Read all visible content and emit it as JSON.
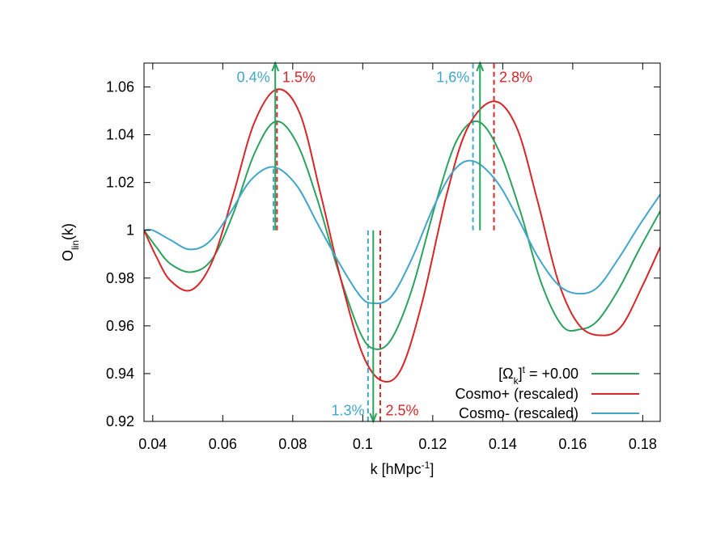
{
  "chart_data": {
    "type": "line",
    "title": "",
    "xlabel": {
      "main": "k [hMpc",
      "sup": "-1",
      "end": "]"
    },
    "ylabel": {
      "main": "O",
      "sub": "lin",
      "end": "(k)"
    },
    "xlim": [
      0.0375,
      0.185
    ],
    "ylim": [
      0.92,
      1.07
    ],
    "xticks": [
      0.04,
      0.06,
      0.08,
      0.1,
      0.12,
      0.14,
      0.16,
      0.18
    ],
    "xtick_labels": [
      "0.04",
      "0.06",
      "0.08",
      "0.1",
      "0.12",
      "0.14",
      "0.16",
      "0.18"
    ],
    "yticks": [
      0.92,
      0.94,
      0.96,
      0.98,
      1.0,
      1.02,
      1.04,
      1.06
    ],
    "ytick_labels": [
      "0.92",
      "0.94",
      "0.96",
      "0.98",
      "1",
      "1.02",
      "1.04",
      "1.06"
    ],
    "grid": false,
    "legend_position": "bottom-right",
    "series": [
      {
        "name": "[Ω_k]^t = +0.00",
        "legend": {
          "pre": "[Ω",
          "sub": "k",
          "mid": "]",
          "sup": "t",
          "post": " = +0.00"
        },
        "color": "#2ca25f",
        "x": [
          0.0375,
          0.041,
          0.045,
          0.051,
          0.057,
          0.063,
          0.069,
          0.075,
          0.081,
          0.087,
          0.093,
          0.099,
          0.103,
          0.108,
          0.114,
          0.121,
          0.127,
          0.133,
          0.139,
          0.145,
          0.151,
          0.157,
          0.162,
          0.167,
          0.173,
          0.179,
          0.185
        ],
        "y": [
          1.0,
          0.993,
          0.986,
          0.9825,
          0.988,
          1.007,
          1.032,
          1.0455,
          1.037,
          1.013,
          0.983,
          0.958,
          0.9505,
          0.954,
          0.975,
          1.012,
          1.038,
          1.0455,
          1.033,
          1.008,
          0.978,
          0.96,
          0.9585,
          0.962,
          0.975,
          0.992,
          1.008
        ]
      },
      {
        "name": "Cosmo+ (rescaled)",
        "legend": {
          "pre": "Cosmo+ (rescaled)"
        },
        "color": "#d62728",
        "x": [
          0.0375,
          0.041,
          0.045,
          0.051,
          0.057,
          0.063,
          0.069,
          0.0755,
          0.082,
          0.088,
          0.094,
          0.1,
          0.1055,
          0.111,
          0.117,
          0.124,
          0.13,
          0.1375,
          0.144,
          0.15,
          0.156,
          0.162,
          0.1685,
          0.174,
          0.18,
          0.185
        ],
        "y": [
          1.0,
          0.989,
          0.979,
          0.975,
          0.987,
          1.015,
          1.045,
          1.059,
          1.049,
          1.015,
          0.978,
          0.948,
          0.937,
          0.942,
          0.97,
          1.015,
          1.043,
          1.054,
          1.043,
          1.012,
          0.978,
          0.96,
          0.956,
          0.96,
          0.977,
          0.993
        ]
      },
      {
        "name": "Cosmo- (rescaled)",
        "legend": {
          "pre": "Cosmo- (rescaled)"
        },
        "color": "#41a6c9",
        "x": [
          0.0375,
          0.04,
          0.045,
          0.0505,
          0.056,
          0.062,
          0.068,
          0.0745,
          0.081,
          0.087,
          0.093,
          0.099,
          0.1025,
          0.108,
          0.114,
          0.12,
          0.126,
          0.1315,
          0.138,
          0.144,
          0.15,
          0.156,
          0.1615,
          0.167,
          0.173,
          0.179,
          0.185
        ],
        "y": [
          1.0,
          1.0,
          0.996,
          0.992,
          0.995,
          1.007,
          1.021,
          1.0265,
          1.019,
          1.003,
          0.987,
          0.973,
          0.9695,
          0.972,
          0.988,
          1.009,
          1.025,
          1.029,
          1.021,
          1.006,
          0.989,
          0.977,
          0.9735,
          0.976,
          0.988,
          1.002,
          1.015
        ]
      }
    ],
    "markers": [
      {
        "x": 0.0745,
        "y1": 1.0,
        "y2": 1.0265,
        "color": "#41a6c9",
        "style": "dashed"
      },
      {
        "x": 0.0755,
        "y1": 1.0,
        "y2": 1.059,
        "color": "#d62728",
        "style": "dashed"
      },
      {
        "x": 0.1015,
        "y1": 0.92,
        "y2": 1.0,
        "color": "#41a6c9",
        "style": "dashed"
      },
      {
        "x": 0.105,
        "y1": 0.92,
        "y2": 1.0,
        "color": "#d62728",
        "style": "dashed"
      },
      {
        "x": 0.1315,
        "y1": 1.0,
        "y2": 1.07,
        "color": "#41a6c9",
        "style": "dashed"
      },
      {
        "x": 0.1375,
        "y1": 1.0,
        "y2": 1.07,
        "color": "#d62728",
        "style": "dashed"
      }
    ],
    "arrows": [
      {
        "x": 0.075,
        "from": 1.0,
        "to": 1.07,
        "color": "#2ca25f"
      },
      {
        "x": 0.103,
        "from": 1.0,
        "to": 0.92,
        "color": "#2ca25f"
      },
      {
        "x": 0.1335,
        "from": 1.0,
        "to": 1.07,
        "color": "#2ca25f"
      }
    ],
    "annotations": [
      {
        "text": "0.4%",
        "x": 0.0735,
        "y": 1.062,
        "color": "#41a6c9",
        "anchor": "end"
      },
      {
        "text": "1.5%",
        "x": 0.077,
        "y": 1.062,
        "color": "#d62728",
        "anchor": "start"
      },
      {
        "text": "1,6%",
        "x": 0.1305,
        "y": 1.062,
        "color": "#41a6c9",
        "anchor": "end"
      },
      {
        "text": "2.8%",
        "x": 0.139,
        "y": 1.062,
        "color": "#d62728",
        "anchor": "start"
      },
      {
        "text": "1.3%",
        "x": 0.1005,
        "y": 0.9225,
        "color": "#41a6c9",
        "anchor": "end"
      },
      {
        "text": "2.5%",
        "x": 0.1065,
        "y": 0.9225,
        "color": "#d62728",
        "anchor": "start"
      }
    ]
  }
}
